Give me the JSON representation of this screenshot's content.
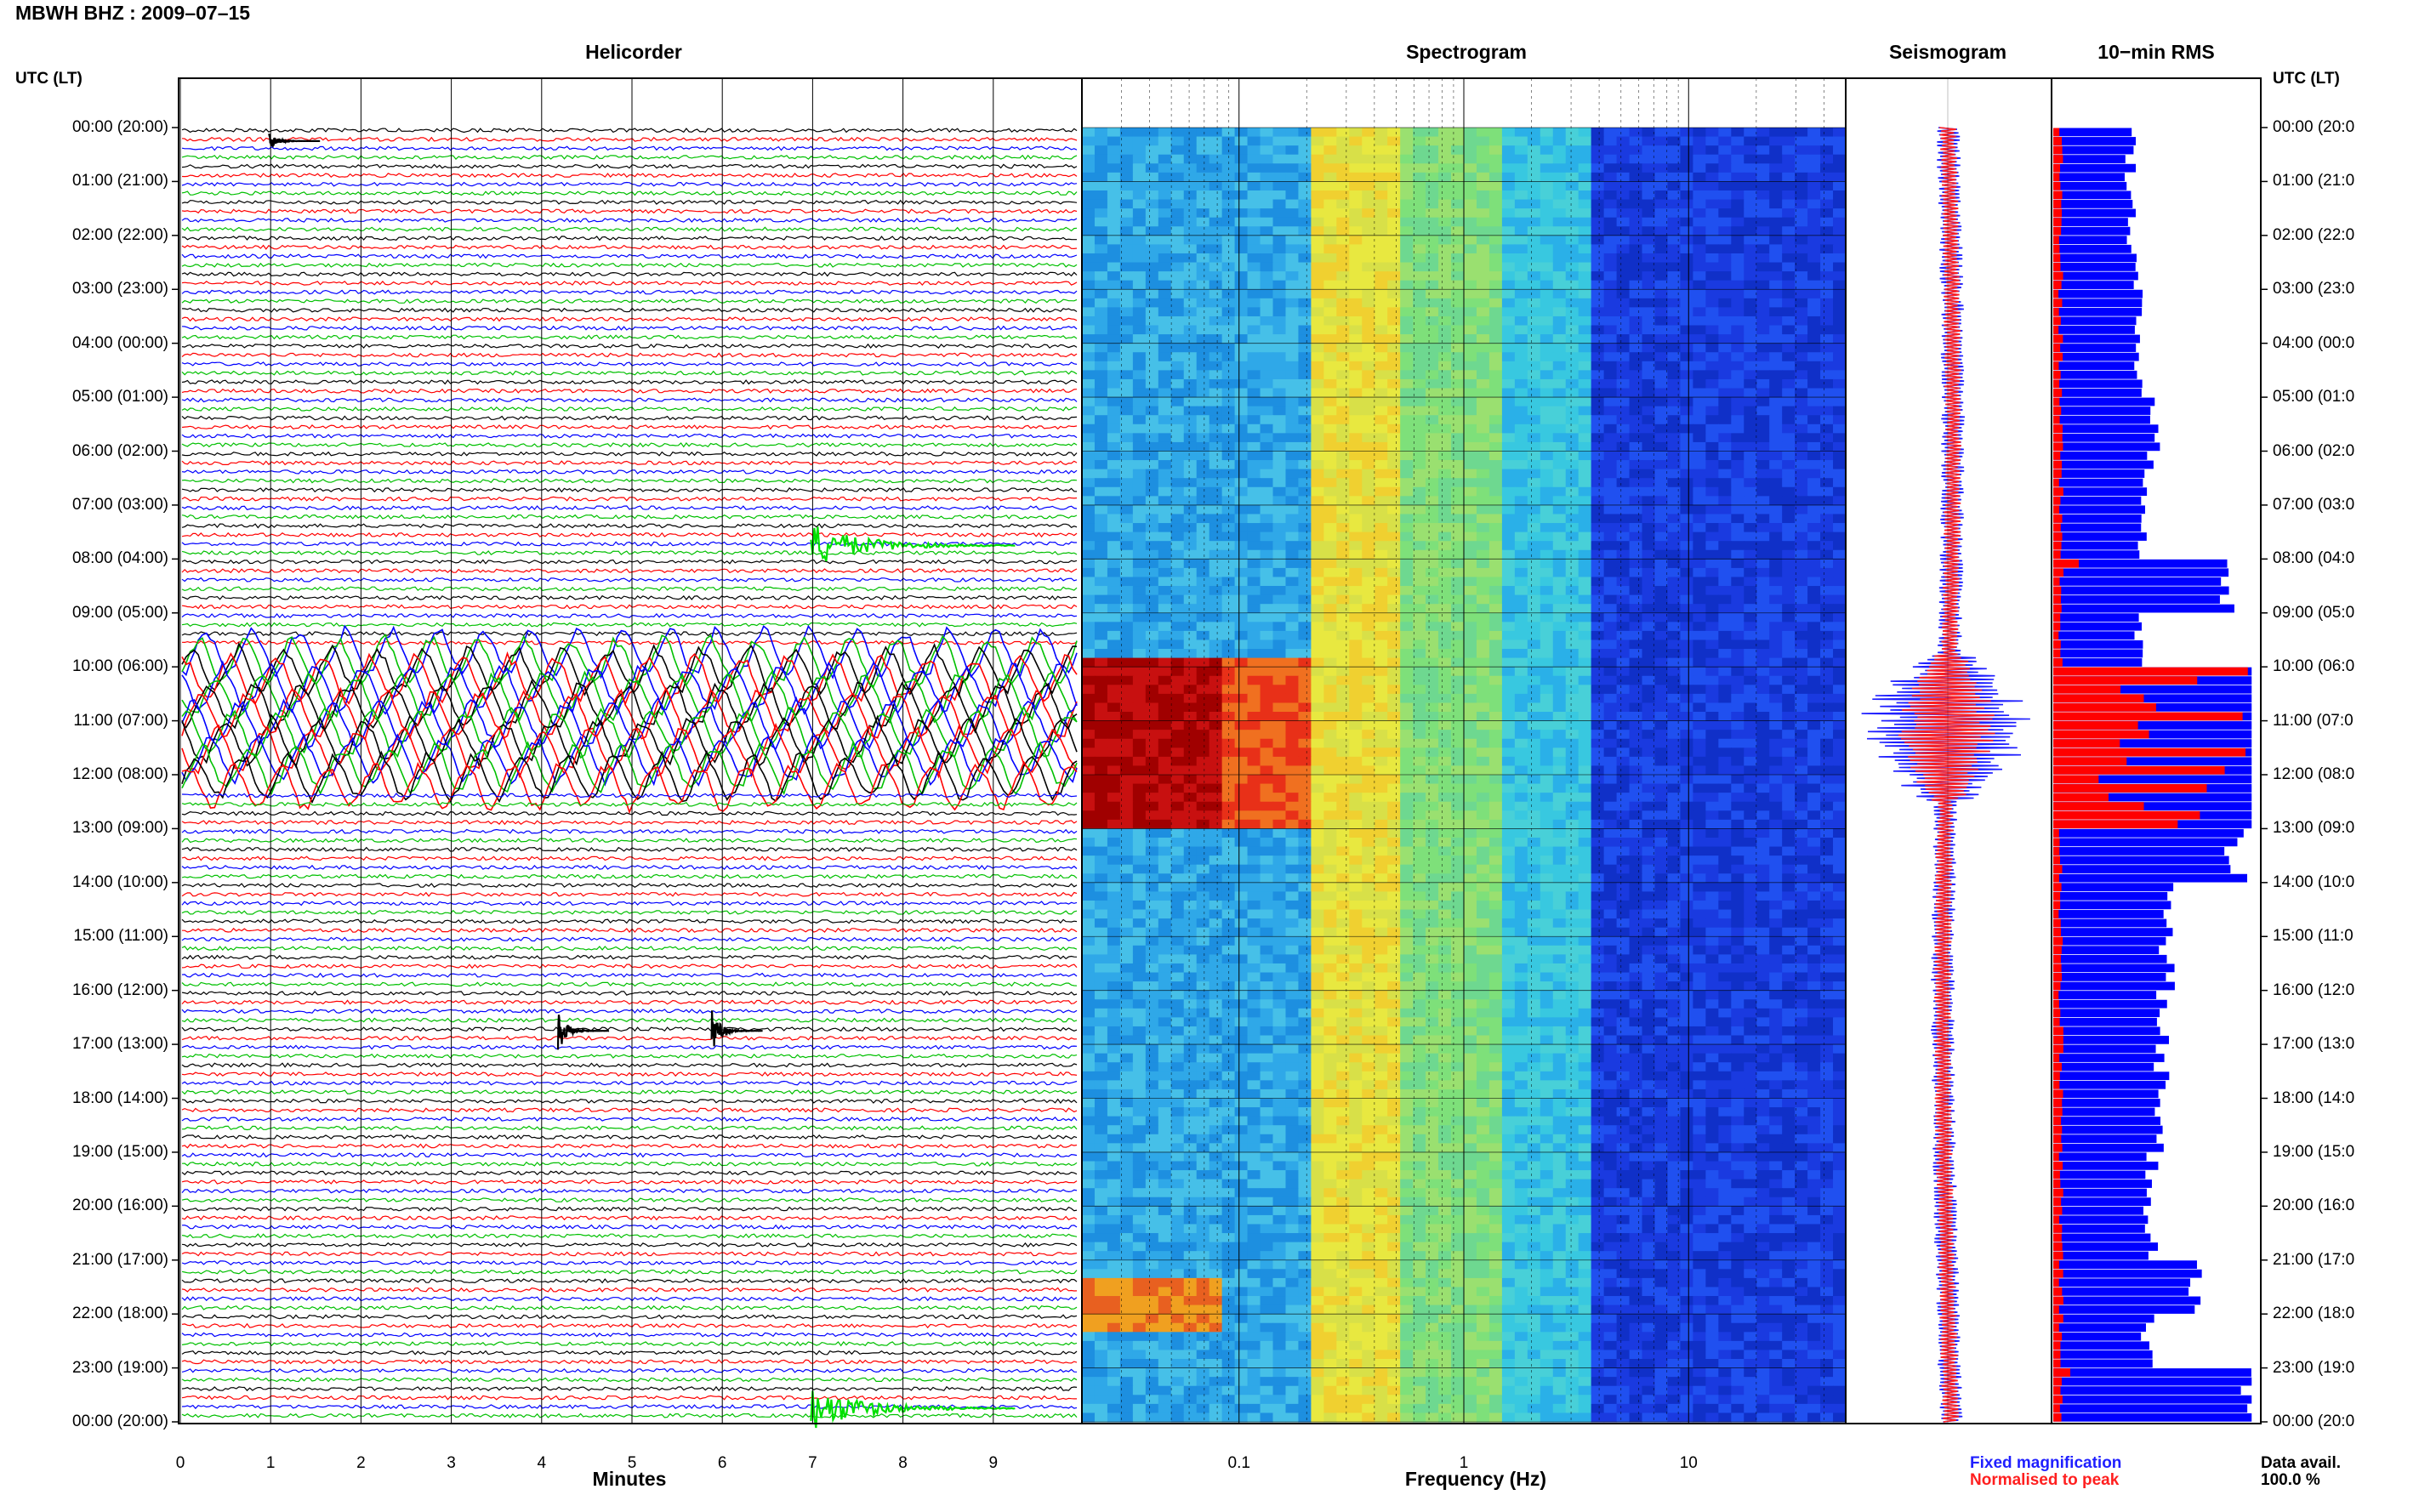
{
  "header": {
    "station": "MBWH BHZ : 2009–07–15",
    "left_axis_header": "UTC (LT)",
    "right_axis_header": "UTC (LT)"
  },
  "panels": {
    "helicorder": "Helicorder",
    "spectrogram": "Spectrogram",
    "seismogram": "Seismogram",
    "rms": "10−min RMS"
  },
  "time_labels": [
    "00:00 (20:00)",
    "01:00 (21:00)",
    "02:00 (22:00)",
    "03:00 (23:00)",
    "04:00 (00:00)",
    "05:00 (01:00)",
    "06:00 (02:00)",
    "07:00 (03:00)",
    "08:00 (04:00)",
    "09:00 (05:00)",
    "10:00 (06:00)",
    "11:00 (07:00)",
    "12:00 (08:00)",
    "13:00 (09:00)",
    "14:00 (10:00)",
    "15:00 (11:00)",
    "16:00 (12:00)",
    "17:00 (13:00)",
    "18:00 (14:00)",
    "19:00 (15:00)",
    "20:00 (16:00)",
    "21:00 (17:00)",
    "22:00 (18:00)",
    "23:00 (19:00)",
    "00:00 (20:00)"
  ],
  "right_time_labels": [
    "00:00 (20:0",
    "01:00 (21:0",
    "02:00 (22:0",
    "03:00 (23:0",
    "04:00 (00:0",
    "05:00 (01:0",
    "06:00 (02:0",
    "07:00 (03:0",
    "08:00 (04:0",
    "09:00 (05:0",
    "10:00 (06:0",
    "11:00 (07:0",
    "12:00 (08:0",
    "13:00 (09:0",
    "14:00 (10:0",
    "15:00 (11:0",
    "16:00 (12:0",
    "17:00 (13:0",
    "18:00 (14:0",
    "19:00 (15:0",
    "20:00 (16:0",
    "21:00 (17:0",
    "22:00 (18:0",
    "23:00 (19:0",
    "00:00 (20:0"
  ],
  "helicorder_axis": {
    "title": "Minutes",
    "ticks": [
      "0",
      "1",
      "2",
      "3",
      "4",
      "5",
      "6",
      "7",
      "8",
      "9"
    ]
  },
  "spectrogram_axis": {
    "title": "Frequency (Hz)",
    "ticks": [
      "0.1",
      "1",
      "10"
    ]
  },
  "legend": {
    "fixed": "Fixed magnification",
    "normalised": "Normalised to peak",
    "avail_label": "Data avail.",
    "avail_value": "100.0 %"
  },
  "colors": {
    "trace_cycle": [
      "#000000",
      "#ff0000",
      "#0000ff",
      "#00c000"
    ],
    "event_green": "#00e000",
    "fixed_blue": "#1f1fff",
    "normalised_red": "#ff1f1f",
    "rms_blue": "#0000ff",
    "rms_red": "#ff0000"
  },
  "chart_data": [
    {
      "type": "line",
      "title": "Helicorder",
      "xlabel": "Minutes",
      "xlim": [
        0,
        10
      ],
      "rows_per_hour": 6,
      "hours": 24,
      "events_utc": [
        {
          "hour": 0,
          "minute": 1.0,
          "color": "black"
        },
        {
          "hour": 7,
          "minute": 7.0,
          "color": "green"
        },
        {
          "hour": 16,
          "minute": 4.2,
          "color": "black"
        },
        {
          "hour": 16,
          "minute": 5.9,
          "color": "black"
        },
        {
          "hour": 23,
          "minute": 7.0,
          "color": "green"
        }
      ],
      "large_activity_utc": [
        9.6,
        12.2
      ]
    },
    {
      "type": "heatmap",
      "title": "Spectrogram",
      "xlabel": "Frequency (Hz)",
      "xscale": "log",
      "xlim": [
        0.02,
        50
      ],
      "x_ticks": [
        0.1,
        1,
        10
      ],
      "y_hours": [
        0,
        24
      ],
      "hotspots": [
        {
          "from_hour": 9.8,
          "to_hour": 13.0,
          "freq_from": 0.02,
          "freq_to": 0.2,
          "color": "red"
        },
        {
          "from_hour": 21.3,
          "to_hour": 22.2,
          "freq_from": 0.02,
          "freq_to": 0.08,
          "color": "orange"
        }
      ]
    },
    {
      "type": "area",
      "title": "Seismogram",
      "series": [
        {
          "name": "Fixed magnification",
          "color": "blue"
        },
        {
          "name": "Normalised to peak",
          "color": "red"
        }
      ],
      "burst_hours": [
        9.8,
        12.5
      ]
    },
    {
      "type": "bar",
      "title": "10−min RMS",
      "orientation": "horizontal",
      "interval_minutes": 10,
      "rms_blue_hours": [
        [
          0,
          0.39
        ],
        [
          1,
          0.4
        ],
        [
          2,
          0.4
        ],
        [
          3,
          0.43
        ],
        [
          4,
          0.44
        ],
        [
          5,
          0.5
        ],
        [
          6,
          0.47
        ],
        [
          7,
          0.45
        ],
        [
          8,
          0.85
        ],
        [
          9,
          0.44
        ],
        [
          10,
          1.0
        ],
        [
          11,
          1.0
        ],
        [
          12,
          1.0
        ],
        [
          13,
          0.92
        ],
        [
          14,
          0.6
        ],
        [
          15,
          0.57
        ],
        [
          16,
          0.54
        ],
        [
          17,
          0.55
        ],
        [
          18,
          0.52
        ],
        [
          19,
          0.5
        ],
        [
          20,
          0.49
        ],
        [
          21,
          0.7
        ],
        [
          22,
          0.48
        ],
        [
          23,
          1.0
        ]
      ],
      "series": [
        {
          "name": "Fixed magnification",
          "color": "blue"
        },
        {
          "name": "Normalised to peak",
          "color": "red"
        }
      ]
    }
  ]
}
